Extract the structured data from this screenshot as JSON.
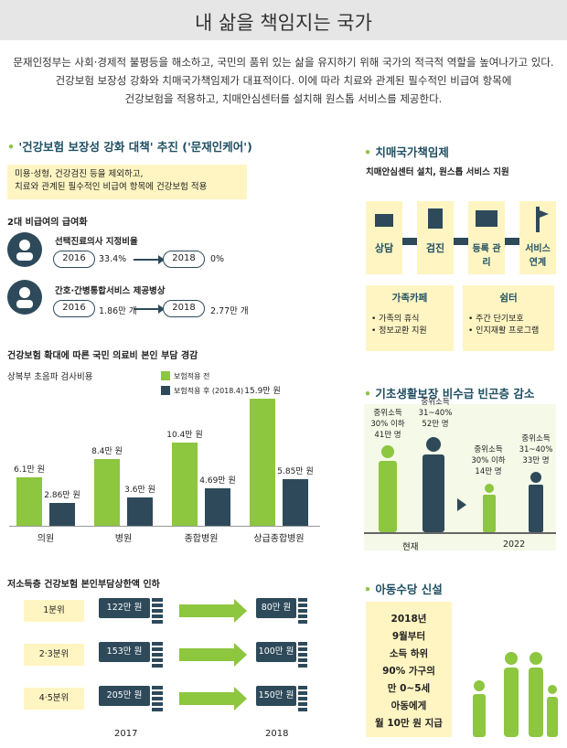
{
  "header": {
    "title": "내 삶을 책임지는 국가"
  },
  "intro": [
    "문재인정부는 사회·경제적 불평등을 해소하고, 국민의 품위 있는 삶을 유지하기 위해 국가의 적극적 역할을 높여나가고 있다.",
    "건강보험 보장성 강화와 치매국가책임제가 대표적이다. 이에 따라 치료와 관계된 필수적인 비급여 항목에",
    "건강보험을 적용하고, 치매안심센터를 설치해 원스톱 서비스를 제공한다."
  ],
  "left": {
    "section_title": "'건강보험 보장성 강화 대책' 추진 ('문재인케어')",
    "box": [
      "미용·성형, 건강검진 등을 제외하고,",
      "치료와 관계된 필수적인 비급여 항목에 건강보험 적용"
    ],
    "sub1": "2대 비급여의 급여화",
    "item1": {
      "title": "선택진료의사 지정비율",
      "y1": "2016",
      "v1": "33.4%",
      "y2": "2018",
      "v2": "0%"
    },
    "item2": {
      "title": "간호·간병통합서비스 제공병상",
      "y1": "2016",
      "v1": "1.86만 개",
      "y2": "2018",
      "v2": "2.77만 개"
    },
    "chart_title": "건강보험 확대에 따른 국민 의료비 본인 부담 경감",
    "chart_sub": "상복부 초음파 검사비용",
    "legend": [
      "보험적용 전",
      "보험적용 후 (2018.4)"
    ],
    "bottom_title": "저소득층 건강보험 본인부담상한액 인하",
    "tiers": [
      {
        "name": "1분위",
        "a": "122만 원",
        "b": "80만 원"
      },
      {
        "name": "2·3분위",
        "a": "153만 원",
        "b": "100만 원"
      },
      {
        "name": "4·5분위",
        "a": "205만 원",
        "b": "150만 원"
      }
    ],
    "years": [
      "2017",
      "2018"
    ]
  },
  "chart_data": {
    "type": "bar",
    "categories": [
      "의원",
      "병원",
      "종합병원",
      "상급종합병원"
    ],
    "series": [
      {
        "name": "보험적용 전",
        "values": [
          6.1,
          8.4,
          10.4,
          15.9
        ],
        "labels": [
          "6.1만 원",
          "8.4만 원",
          "10.4만 원",
          "15.9만 원"
        ],
        "color": "#8dc63f"
      },
      {
        "name": "보험적용 후 (2018.4)",
        "values": [
          2.86,
          3.6,
          4.69,
          5.85
        ],
        "labels": [
          "2.86만 원",
          "3.6만 원",
          "4.69만 원",
          "5.85만 원"
        ],
        "color": "#2e4a5a"
      }
    ],
    "title": "건강보험 확대에 따른 국민 의료비 본인 부담 경감",
    "ylim": [
      0,
      16
    ]
  },
  "right": {
    "dementia_title": "치매국가책임제",
    "dementia_sub": "치매안심센터 설치, 원스톱 서비스 지원",
    "services": [
      "상담",
      "검진",
      "등록 관리",
      "서비스 연계"
    ],
    "cafe": {
      "title": "가족카페",
      "items": [
        "• 가족의 휴식",
        "• 정보교환 지원"
      ]
    },
    "shelter": {
      "title": "쉼터",
      "items": [
        "• 주간 단기보호",
        "• 인지재활 프로그램"
      ]
    },
    "basic_title": "기초생활보장 비수급 빈곤층 감소",
    "now": [
      {
        "text": [
          "중위소득",
          "30% 이하",
          "41만 명"
        ]
      },
      {
        "text": [
          "중위소득",
          "31~40%",
          "52만 명"
        ]
      }
    ],
    "future": [
      {
        "text": [
          "중위소득",
          "30% 이하",
          "14만 명"
        ]
      },
      {
        "text": [
          "중위소득",
          "31~40%",
          "33만 명"
        ]
      }
    ],
    "now_label": "현재",
    "future_label": "2022",
    "child_title": "아동수당 신설",
    "child_text": [
      "2018년",
      "9월부터",
      "소득 하위",
      "90% 가구의",
      "만 0~5세",
      "아동에게",
      "월 10만 원 지급"
    ]
  }
}
